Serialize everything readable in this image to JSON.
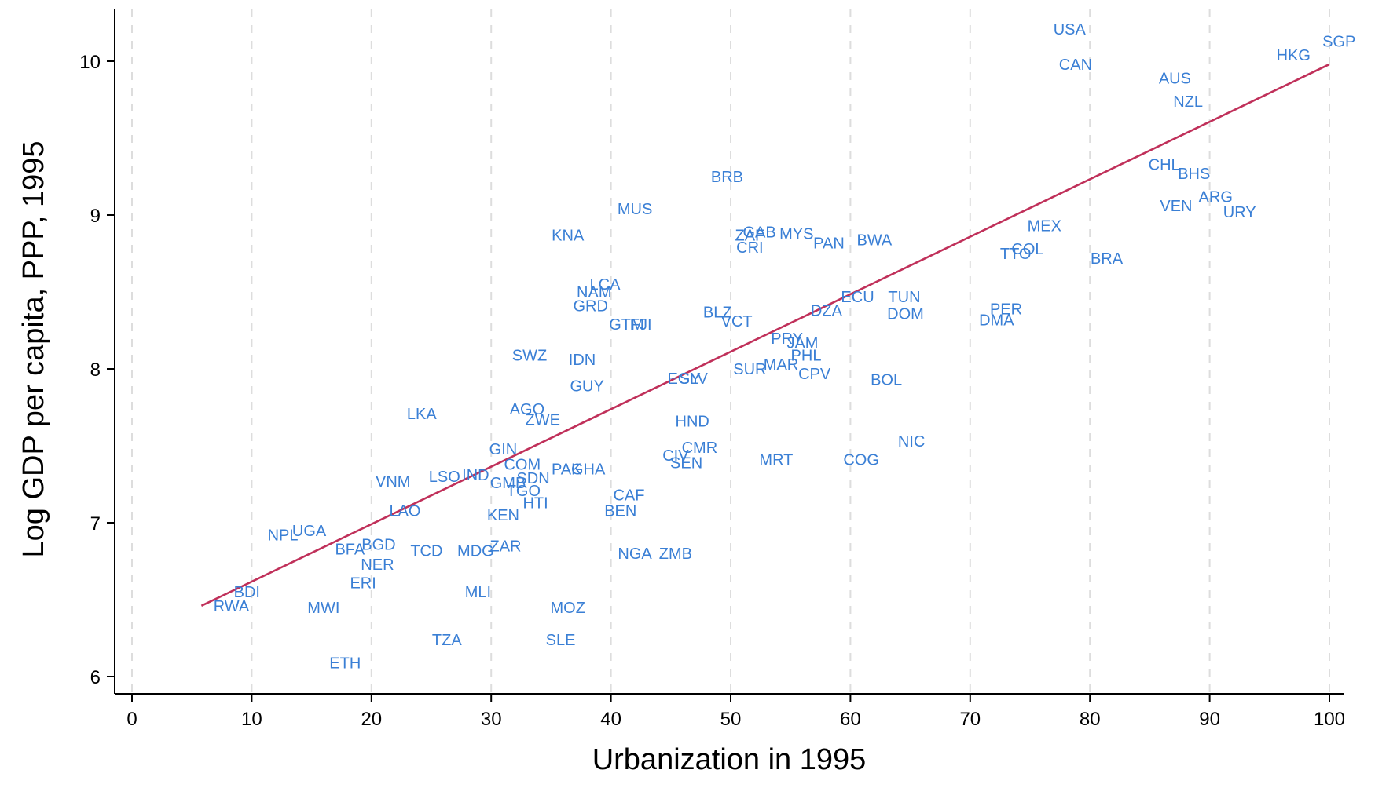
{
  "chart_data": {
    "type": "scatter",
    "title": "",
    "xlabel": "Urbanization in 1995",
    "ylabel": "Log GDP per capita, PPP, 1995",
    "xlim": [
      0,
      100
    ],
    "ylim": [
      6,
      10
    ],
    "xticks": [
      "0",
      "10",
      "20",
      "30",
      "40",
      "50",
      "60",
      "70",
      "80",
      "90",
      "100"
    ],
    "yticks": [
      "6",
      "7",
      "8",
      "9",
      "10"
    ],
    "grid": "vertical dashed at x ticks",
    "point_marker": "country code text labels",
    "colors": {
      "points": "#3a7fd5",
      "fit_line": "#c0305a",
      "axis": "#000000",
      "grid": "#dddddd"
    },
    "fit_line": {
      "x": [
        5.8,
        100
      ],
      "y": [
        6.46,
        9.98
      ]
    },
    "points": [
      {
        "label": "USA",
        "x": 78.3,
        "y": 10.21
      },
      {
        "label": "SGP",
        "x": 100.8,
        "y": 10.13
      },
      {
        "label": "HKG",
        "x": 97.0,
        "y": 10.04
      },
      {
        "label": "CAN",
        "x": 78.8,
        "y": 9.98
      },
      {
        "label": "AUS",
        "x": 87.1,
        "y": 9.89
      },
      {
        "label": "NZL",
        "x": 88.2,
        "y": 9.74
      },
      {
        "label": "CHL",
        "x": 86.2,
        "y": 9.33
      },
      {
        "label": "BHS",
        "x": 88.7,
        "y": 9.27
      },
      {
        "label": "BRB",
        "x": 49.7,
        "y": 9.25
      },
      {
        "label": "ARG",
        "x": 90.5,
        "y": 9.12
      },
      {
        "label": "VEN",
        "x": 87.2,
        "y": 9.06
      },
      {
        "label": "MUS",
        "x": 42.0,
        "y": 9.04
      },
      {
        "label": "URY",
        "x": 92.5,
        "y": 9.02
      },
      {
        "label": "MEX",
        "x": 76.2,
        "y": 8.93
      },
      {
        "label": "GAB",
        "x": 52.4,
        "y": 8.89
      },
      {
        "label": "MYS",
        "x": 55.5,
        "y": 8.88
      },
      {
        "label": "KNA",
        "x": 36.4,
        "y": 8.87
      },
      {
        "label": "ZAF",
        "x": 51.6,
        "y": 8.87
      },
      {
        "label": "BWA",
        "x": 62.0,
        "y": 8.84
      },
      {
        "label": "PAN",
        "x": 58.2,
        "y": 8.82
      },
      {
        "label": "COL",
        "x": 74.8,
        "y": 8.78
      },
      {
        "label": "CRI",
        "x": 51.6,
        "y": 8.79
      },
      {
        "label": "TTO",
        "x": 73.8,
        "y": 8.75
      },
      {
        "label": "BRA",
        "x": 81.4,
        "y": 8.72
      },
      {
        "label": "LCA",
        "x": 39.5,
        "y": 8.55
      },
      {
        "label": "NAM",
        "x": 38.6,
        "y": 8.5
      },
      {
        "label": "ECU",
        "x": 60.6,
        "y": 8.47
      },
      {
        "label": "TUN",
        "x": 64.5,
        "y": 8.47
      },
      {
        "label": "GRD",
        "x": 38.3,
        "y": 8.41
      },
      {
        "label": "PER",
        "x": 73.0,
        "y": 8.39
      },
      {
        "label": "DZA",
        "x": 58.0,
        "y": 8.38
      },
      {
        "label": "BLZ",
        "x": 48.9,
        "y": 8.37
      },
      {
        "label": "DOM",
        "x": 64.6,
        "y": 8.36
      },
      {
        "label": "DMA",
        "x": 72.2,
        "y": 8.32
      },
      {
        "label": "VCT",
        "x": 50.5,
        "y": 8.31
      },
      {
        "label": "GTM",
        "x": 41.3,
        "y": 8.29
      },
      {
        "label": "FJI",
        "x": 42.5,
        "y": 8.29
      },
      {
        "label": "PRY",
        "x": 54.7,
        "y": 8.2
      },
      {
        "label": "JAM",
        "x": 56.0,
        "y": 8.17
      },
      {
        "label": "SWZ",
        "x": 33.2,
        "y": 8.09
      },
      {
        "label": "PHL",
        "x": 56.3,
        "y": 8.09
      },
      {
        "label": "IDN",
        "x": 37.6,
        "y": 8.06
      },
      {
        "label": "MAR",
        "x": 54.2,
        "y": 8.03
      },
      {
        "label": "SUR",
        "x": 51.6,
        "y": 8.0
      },
      {
        "label": "CPV",
        "x": 57.0,
        "y": 7.97
      },
      {
        "label": "EGY",
        "x": 46.1,
        "y": 7.94
      },
      {
        "label": "SLV",
        "x": 46.9,
        "y": 7.94
      },
      {
        "label": "BOL",
        "x": 63.0,
        "y": 7.93
      },
      {
        "label": "GUY",
        "x": 38.0,
        "y": 7.89
      },
      {
        "label": "AGO",
        "x": 33.0,
        "y": 7.74
      },
      {
        "label": "LKA",
        "x": 24.2,
        "y": 7.71
      },
      {
        "label": "ZWE",
        "x": 34.3,
        "y": 7.67
      },
      {
        "label": "HND",
        "x": 46.8,
        "y": 7.66
      },
      {
        "label": "NIC",
        "x": 65.1,
        "y": 7.53
      },
      {
        "label": "CMR",
        "x": 47.4,
        "y": 7.49
      },
      {
        "label": "GIN",
        "x": 31.0,
        "y": 7.48
      },
      {
        "label": "CIV",
        "x": 45.4,
        "y": 7.44
      },
      {
        "label": "MRT",
        "x": 53.8,
        "y": 7.41
      },
      {
        "label": "COG",
        "x": 60.9,
        "y": 7.41
      },
      {
        "label": "SEN",
        "x": 46.3,
        "y": 7.39
      },
      {
        "label": "COM",
        "x": 32.6,
        "y": 7.38
      },
      {
        "label": "PAK",
        "x": 36.3,
        "y": 7.35
      },
      {
        "label": "GHA",
        "x": 38.1,
        "y": 7.35
      },
      {
        "label": "IND",
        "x": 28.7,
        "y": 7.31
      },
      {
        "label": "LSO",
        "x": 26.1,
        "y": 7.3
      },
      {
        "label": "SDN",
        "x": 33.5,
        "y": 7.29
      },
      {
        "label": "VNM",
        "x": 21.8,
        "y": 7.27
      },
      {
        "label": "GMB",
        "x": 31.4,
        "y": 7.26
      },
      {
        "label": "TGO",
        "x": 32.7,
        "y": 7.21
      },
      {
        "label": "CAF",
        "x": 41.5,
        "y": 7.18
      },
      {
        "label": "HTI",
        "x": 33.7,
        "y": 7.13
      },
      {
        "label": "LAO",
        "x": 22.8,
        "y": 7.08
      },
      {
        "label": "BEN",
        "x": 40.8,
        "y": 7.08
      },
      {
        "label": "KEN",
        "x": 31.0,
        "y": 7.05
      },
      {
        "label": "UGA",
        "x": 14.8,
        "y": 6.95
      },
      {
        "label": "NPL",
        "x": 12.6,
        "y": 6.92
      },
      {
        "label": "BGD",
        "x": 20.6,
        "y": 6.86
      },
      {
        "label": "ZAR",
        "x": 31.2,
        "y": 6.85
      },
      {
        "label": "BFA",
        "x": 18.2,
        "y": 6.83
      },
      {
        "label": "TCD",
        "x": 24.6,
        "y": 6.82
      },
      {
        "label": "MDG",
        "x": 28.7,
        "y": 6.82
      },
      {
        "label": "NGA",
        "x": 42.0,
        "y": 6.8
      },
      {
        "label": "ZMB",
        "x": 45.4,
        "y": 6.8
      },
      {
        "label": "NER",
        "x": 20.5,
        "y": 6.73
      },
      {
        "label": "ERI",
        "x": 19.3,
        "y": 6.61
      },
      {
        "label": "BDI",
        "x": 9.6,
        "y": 6.55
      },
      {
        "label": "MLI",
        "x": 28.9,
        "y": 6.55
      },
      {
        "label": "RWA",
        "x": 8.3,
        "y": 6.46
      },
      {
        "label": "MWI",
        "x": 16.0,
        "y": 6.45
      },
      {
        "label": "MOZ",
        "x": 36.4,
        "y": 6.45
      },
      {
        "label": "TZA",
        "x": 26.3,
        "y": 6.24
      },
      {
        "label": "SLE",
        "x": 35.8,
        "y": 6.24
      },
      {
        "label": "ETH",
        "x": 17.8,
        "y": 6.09
      }
    ]
  }
}
